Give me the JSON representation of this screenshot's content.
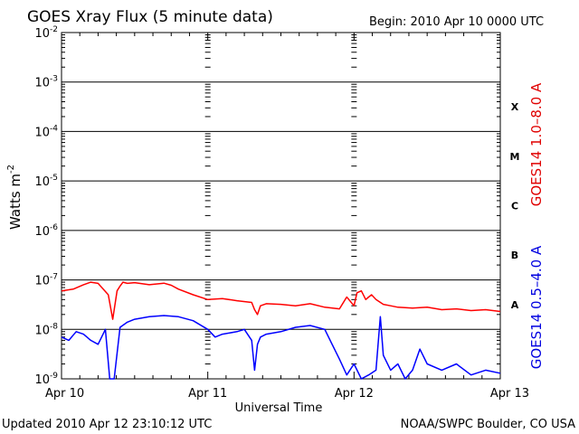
{
  "chart_data": {
    "type": "line",
    "title": "GOES Xray Flux (5 minute data)",
    "begin_label": "Begin:  2010 Apr 10 0000 UTC",
    "xlabel": "Universal Time",
    "ylabel": "Watts m",
    "ylabel_exp": "-2",
    "y_scale": "log",
    "ylim": [
      1e-09,
      0.01
    ],
    "y_ticks": [
      {
        "base": "10",
        "exp": "-2",
        "value": 0.01
      },
      {
        "base": "10",
        "exp": "-3",
        "value": 0.001
      },
      {
        "base": "10",
        "exp": "-4",
        "value": 0.0001
      },
      {
        "base": "10",
        "exp": "-5",
        "value": 1e-05
      },
      {
        "base": "10",
        "exp": "-6",
        "value": 1e-06
      },
      {
        "base": "10",
        "exp": "-7",
        "value": 1e-07
      },
      {
        "base": "10",
        "exp": "-8",
        "value": 1e-08
      },
      {
        "base": "10",
        "exp": "-9",
        "value": 1e-09
      }
    ],
    "x_ticks": [
      "Apr 10",
      "Apr 11",
      "Apr 12",
      "Apr 13"
    ],
    "flare_classes": [
      {
        "label": "X",
        "value": 0.000316
      },
      {
        "label": "M",
        "value": 3.16e-05
      },
      {
        "label": "C",
        "value": 3.16e-06
      },
      {
        "label": "B",
        "value": 3.16e-07
      },
      {
        "label": "A",
        "value": 3.16e-08
      }
    ],
    "grid": true,
    "series": [
      {
        "name": "GOES14 1.0–8.0 A",
        "color": "#ff0000",
        "x_days": [
          0.0,
          0.08,
          0.15,
          0.2,
          0.25,
          0.32,
          0.35,
          0.38,
          0.4,
          0.42,
          0.45,
          0.5,
          0.6,
          0.7,
          0.75,
          0.8,
          0.9,
          1.0,
          1.1,
          1.2,
          1.3,
          1.32,
          1.34,
          1.36,
          1.4,
          1.5,
          1.6,
          1.7,
          1.8,
          1.9,
          1.95,
          2.0,
          2.02,
          2.05,
          2.08,
          2.1,
          2.12,
          2.15,
          2.2,
          2.25,
          2.3,
          2.4,
          2.5,
          2.6,
          2.7,
          2.8,
          2.9,
          3.0
        ],
        "values": [
          6e-08,
          6.5e-08,
          8e-08,
          9e-08,
          8.5e-08,
          5e-08,
          1.6e-08,
          6e-08,
          7.5e-08,
          9e-08,
          8.5e-08,
          8.8e-08,
          8e-08,
          8.6e-08,
          7.8e-08,
          6.5e-08,
          5e-08,
          4e-08,
          4.2e-08,
          3.8e-08,
          3.5e-08,
          2.5e-08,
          2e-08,
          3e-08,
          3.3e-08,
          3.2e-08,
          3e-08,
          3.3e-08,
          2.8e-08,
          2.6e-08,
          4.5e-08,
          3e-08,
          5.5e-08,
          6e-08,
          4e-08,
          4.5e-08,
          5e-08,
          4e-08,
          3.2e-08,
          3e-08,
          2.8e-08,
          2.7e-08,
          2.8e-08,
          2.5e-08,
          2.6e-08,
          2.4e-08,
          2.5e-08,
          2.3e-08
        ]
      },
      {
        "name": "GOES14 0.5–4.0 A",
        "color": "#0000ff",
        "x_days": [
          0.0,
          0.05,
          0.1,
          0.15,
          0.2,
          0.25,
          0.3,
          0.33,
          0.36,
          0.4,
          0.45,
          0.5,
          0.6,
          0.7,
          0.8,
          0.9,
          1.0,
          1.05,
          1.1,
          1.2,
          1.25,
          1.3,
          1.32,
          1.34,
          1.36,
          1.4,
          1.5,
          1.6,
          1.7,
          1.8,
          1.85,
          1.9,
          1.95,
          2.0,
          2.05,
          2.1,
          2.15,
          2.18,
          2.2,
          2.25,
          2.3,
          2.35,
          2.4,
          2.45,
          2.5,
          2.6,
          2.7,
          2.8,
          2.9,
          3.0
        ],
        "values": [
          7e-09,
          6e-09,
          9e-09,
          8e-09,
          6e-09,
          5e-09,
          1e-08,
          1e-09,
          1e-09,
          1.1e-08,
          1.4e-08,
          1.6e-08,
          1.8e-08,
          1.9e-08,
          1.8e-08,
          1.5e-08,
          1e-08,
          7e-09,
          8e-09,
          9e-09,
          1e-08,
          6e-09,
          1.5e-09,
          5e-09,
          7e-09,
          8e-09,
          9e-09,
          1.1e-08,
          1.2e-08,
          1e-08,
          5e-09,
          2.5e-09,
          1.2e-09,
          2e-09,
          1e-09,
          1.2e-09,
          1.5e-09,
          1.8e-08,
          3e-09,
          1.5e-09,
          2e-09,
          1e-09,
          1.5e-09,
          4e-09,
          2e-09,
          1.5e-09,
          2e-09,
          1.2e-09,
          1.5e-09,
          1.3e-09
        ]
      }
    ]
  },
  "footer": {
    "updated": "Updated 2010 Apr 12 23:10:12 UTC",
    "source": "NOAA/SWPC Boulder, CO USA"
  }
}
